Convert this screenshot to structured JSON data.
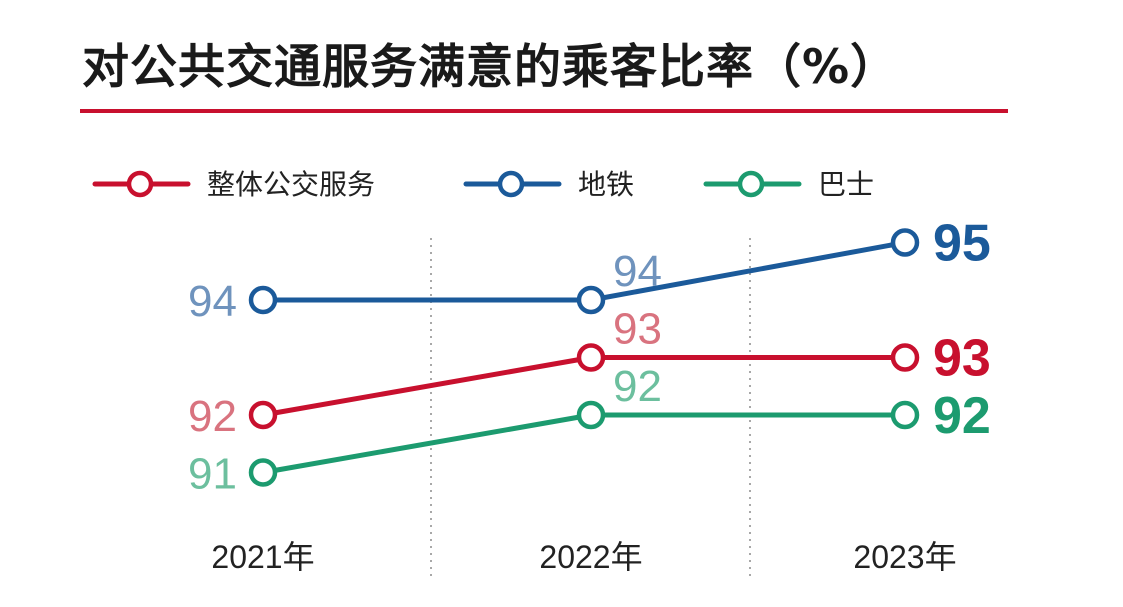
{
  "title": "对公共交通服务满意的乘客比率（%）",
  "colors": {
    "accent": "#c8102e",
    "grid": "#a8a8a8"
  },
  "chart_data": {
    "type": "line",
    "title": "对公共交通服务满意的乘客比率（%）",
    "x": [
      "2021年",
      "2022年",
      "2023年"
    ],
    "ylim": [
      90,
      96
    ],
    "grid": "vertical dotted lines between years",
    "legend_placement": "top-left",
    "series": [
      {
        "name": "整体公交服务",
        "color": "#c8102e",
        "label_color": "#d9737f",
        "values": [
          92,
          93,
          93
        ]
      },
      {
        "name": "地铁",
        "color": "#1b5a9a",
        "label_color": "#6f93bd",
        "values": [
          94,
          94,
          95
        ]
      },
      {
        "name": "巴士",
        "color": "#1c9b6f",
        "label_color": "#6cbf9e",
        "values": [
          91,
          92,
          92
        ]
      }
    ]
  }
}
